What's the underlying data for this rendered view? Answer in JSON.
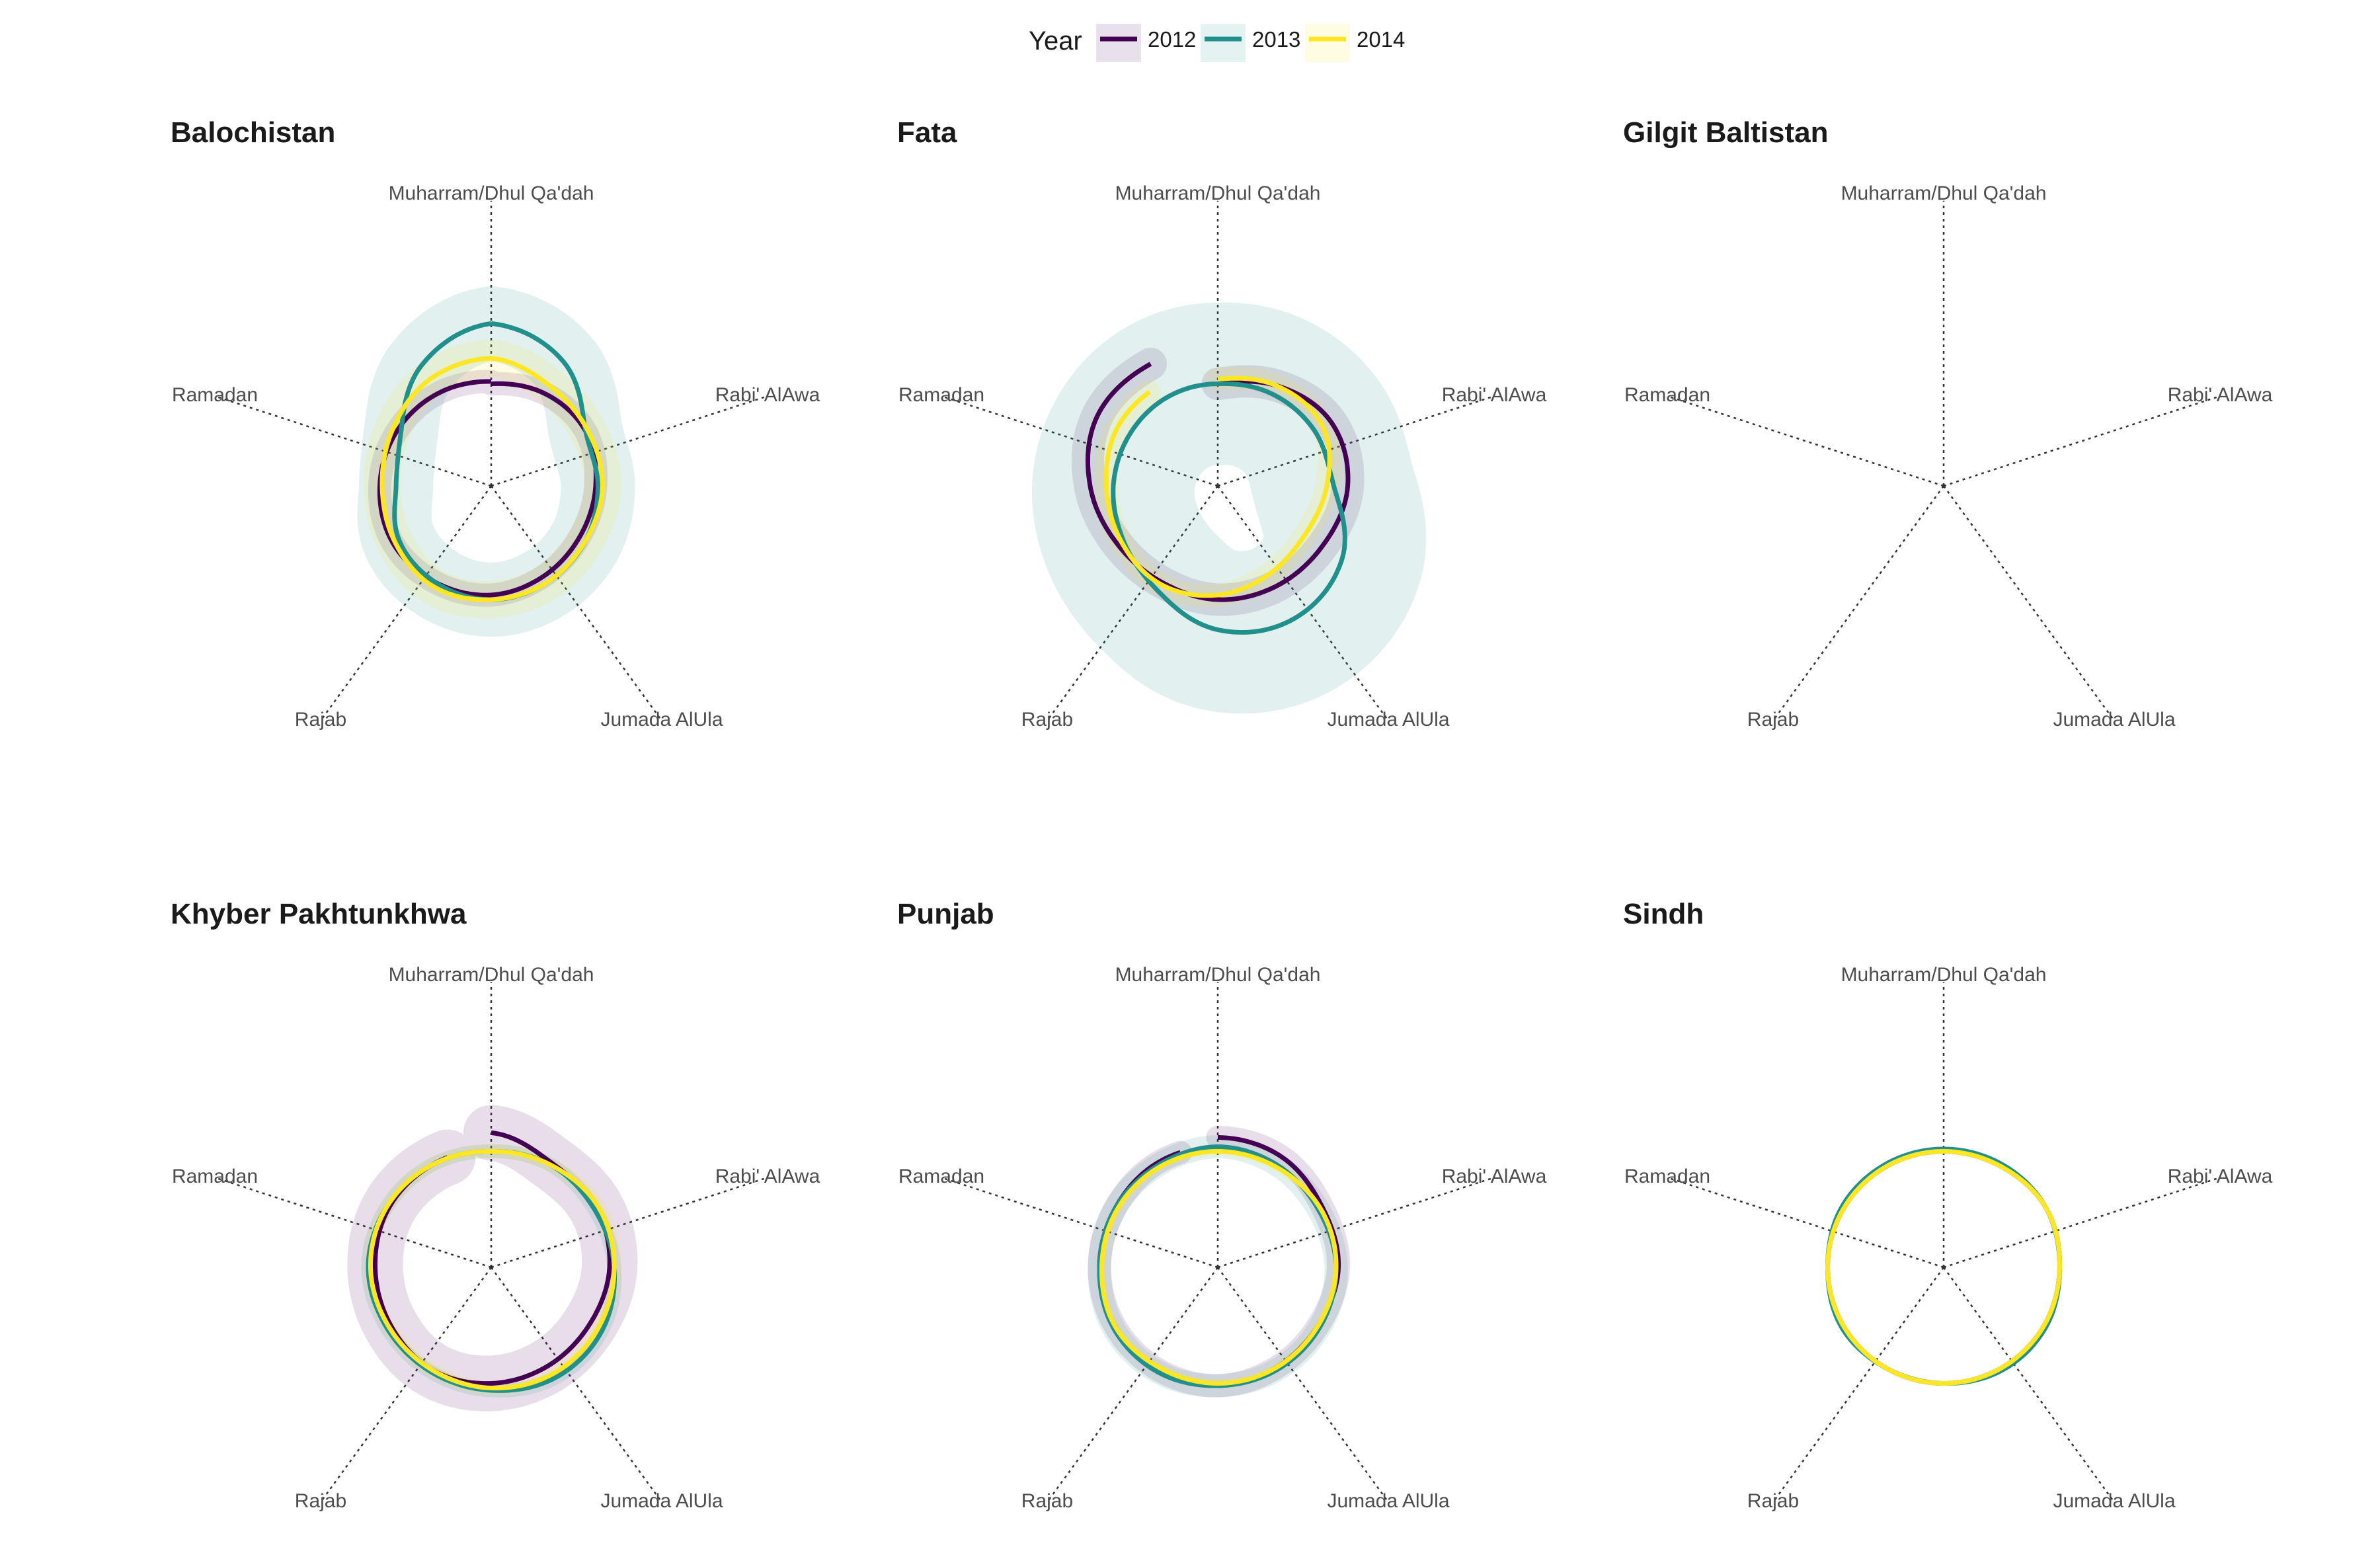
{
  "chart_data": {
    "type": "radial-line",
    "legend": {
      "title": "Year",
      "position": "top",
      "entries": [
        {
          "label": "2012",
          "color": "#440154"
        },
        {
          "label": "2013",
          "color": "#21908C"
        },
        {
          "label": "2014",
          "color": "#FDE725"
        }
      ]
    },
    "axes": [
      "Muharram/Dhul Qa'dah",
      "Rabi' AlAwa",
      "Jumada AlUla",
      "Rajab",
      "Ramadan"
    ],
    "grid": "dotted spokes",
    "panels": [
      {
        "title": "Balochistan",
        "series": [
          {
            "name": "2012",
            "r": [
              0.44,
              0.46,
              0.47,
              0.45,
              0.44,
              0.45,
              0.47,
              0.48,
              0.49,
              0.48,
              0.47,
              0.46,
              0.45
            ],
            "start": 0,
            "end": 1.0,
            "band": 0.05
          },
          {
            "name": "2013",
            "r": [
              0.7,
              0.62,
              0.47,
              0.46,
              0.47,
              0.48,
              0.49,
              0.48,
              0.46,
              0.41,
              0.45,
              0.6,
              0.7
            ],
            "start": 0,
            "end": 1.0,
            "band": 0.16
          },
          {
            "name": "2014",
            "r": [
              0.55,
              0.5,
              0.48,
              0.48,
              0.47,
              0.48,
              0.49,
              0.5,
              0.48,
              0.47,
              0.49,
              0.53,
              0.55
            ],
            "start": 0,
            "end": 1.0,
            "band": 0.08
          }
        ]
      },
      {
        "title": "Fata",
        "series": [
          {
            "name": "2012",
            "r": [
              0.44,
              0.5,
              0.56,
              0.56,
              0.52,
              0.5,
              0.49,
              0.48,
              0.5,
              0.55,
              0.6,
              0.6,
              0.6
            ],
            "start": 0,
            "end": 0.92,
            "band": 0.07
          },
          {
            "name": "2013",
            "r": [
              0.44,
              0.46,
              0.48,
              0.5,
              0.62,
              0.66,
              0.62,
              0.52,
              0.47,
              0.45,
              0.44,
              0.44,
              0.44
            ],
            "start": 0,
            "end": 1.0,
            "band": 0.35
          },
          {
            "name": "2014",
            "r": [
              0.46,
              0.5,
              0.52,
              0.47,
              0.43,
              0.44,
              0.47,
              0.49,
              0.48,
              0.48,
              0.5,
              0.5,
              0.5
            ],
            "start": 0,
            "end": 0.9,
            "band": 0.05
          }
        ]
      },
      {
        "title": "Gilgit Baltistan",
        "series": []
      },
      {
        "title": "Khyber Pakhtunkhwa",
        "series": [
          {
            "name": "2012",
            "r": [
              0.58,
              0.52,
              0.52,
              0.51,
              0.49,
              0.49,
              0.5,
              0.51,
              0.5,
              0.5,
              0.51,
              0.51,
              0.51
            ],
            "start": 0,
            "end": 0.94,
            "band": 0.12
          },
          {
            "name": "2013",
            "r": [
              0.5,
              0.51,
              0.51,
              0.53,
              0.55,
              0.55,
              0.53,
              0.52,
              0.52,
              0.53,
              0.52,
              0.51,
              0.5
            ],
            "start": 0,
            "end": 1.0,
            "band": 0.03
          },
          {
            "name": "2014",
            "r": [
              0.5,
              0.51,
              0.53,
              0.53,
              0.53,
              0.53,
              0.52,
              0.51,
              0.51,
              0.52,
              0.52,
              0.51,
              0.5
            ],
            "start": 0,
            "end": 1.0,
            "band": 0.03
          }
        ]
      },
      {
        "title": "Punjab",
        "series": [
          {
            "name": "2012",
            "r": [
              0.56,
              0.55,
              0.52,
              0.52,
              0.5,
              0.5,
              0.51,
              0.51,
              0.51,
              0.51,
              0.51,
              0.52,
              0.52
            ],
            "start": 0,
            "end": 0.95,
            "band": 0.05
          },
          {
            "name": "2013",
            "r": [
              0.52,
              0.51,
              0.5,
              0.51,
              0.51,
              0.51,
              0.51,
              0.52,
              0.52,
              0.51,
              0.51,
              0.51,
              0.52
            ],
            "start": 0,
            "end": 1.0,
            "band": 0.05
          },
          {
            "name": "2014",
            "r": [
              0.5,
              0.5,
              0.51,
              0.51,
              0.5,
              0.5,
              0.5,
              0.5,
              0.51,
              0.5,
              0.5,
              0.5,
              0.5
            ],
            "start": 0,
            "end": 1.0,
            "band": 0.02
          }
        ]
      },
      {
        "title": "Sindh",
        "series": [
          {
            "name": "2012",
            "r": [
              0.5,
              0.5,
              0.51,
              0.5,
              0.5,
              0.5,
              0.5,
              0.5,
              0.5,
              0.5,
              0.5,
              0.5,
              0.5
            ],
            "start": 0,
            "end": 1.0,
            "band": 0.0
          },
          {
            "name": "2013",
            "r": [
              0.51,
              0.51,
              0.51,
              0.5,
              0.51,
              0.51,
              0.5,
              0.5,
              0.51,
              0.5,
              0.51,
              0.51,
              0.51
            ],
            "start": 0,
            "end": 1.0,
            "band": 0.0
          },
          {
            "name": "2014",
            "r": [
              0.5,
              0.5,
              0.51,
              0.5,
              0.5,
              0.5,
              0.5,
              0.5,
              0.5,
              0.5,
              0.5,
              0.5,
              0.5
            ],
            "start": 0,
            "end": 1.0,
            "band": 0.0
          }
        ]
      }
    ]
  }
}
